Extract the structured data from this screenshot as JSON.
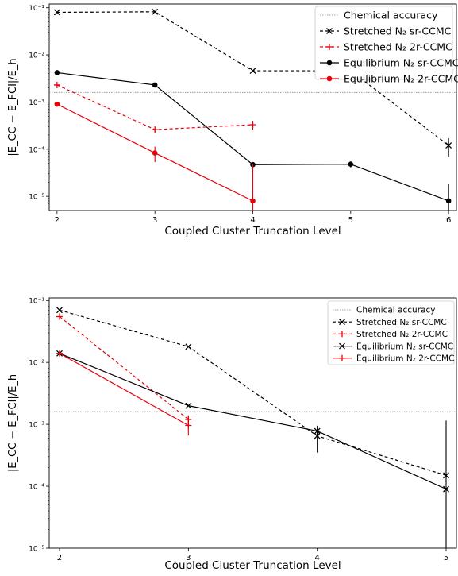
{
  "chart_data": [
    {
      "type": "line",
      "title": "",
      "xlabel": "Coupled Cluster Truncation Level",
      "ylabel": "|E_CC − E_FCI|/E_h",
      "xticks": [
        "2",
        "3",
        "4",
        "5",
        "6"
      ],
      "yticks": [
        "10⁻¹",
        "10⁻²",
        "10⁻³",
        "10⁻⁴",
        "10⁻⁵"
      ],
      "xlim": [
        1.92,
        6.08
      ],
      "ylim": [
        5e-06,
        0.12
      ],
      "yscale": "log",
      "legend_position": "top-right",
      "hline": {
        "name": "Chemical accuracy",
        "y": 0.0016,
        "color": "#888888"
      },
      "series": [
        {
          "name": "Stretched N₂ sr-CCMC",
          "color": "#000000",
          "dashed": true,
          "marker": "x",
          "x": [
            2,
            3,
            4,
            5,
            6
          ],
          "y": [
            0.08,
            0.082,
            0.0046,
            0.0046,
            0.00012
          ],
          "err": [
            0,
            0,
            0,
            0,
            5e-05
          ]
        },
        {
          "name": "Stretched N₂ 2r-CCMC",
          "color": "#e8000b",
          "dashed": true,
          "marker": "plus",
          "x": [
            2,
            3,
            4
          ],
          "y": [
            0.0023,
            0.00026,
            0.00033
          ],
          "err": [
            0,
            2e-05,
            7e-05
          ]
        },
        {
          "name": "Equilibrium N₂ sr-CCMC",
          "color": "#000000",
          "dashed": false,
          "marker": "dot",
          "x": [
            2,
            3,
            4,
            5,
            6
          ],
          "y": [
            0.0042,
            0.0023,
            4.7e-05,
            4.8e-05,
            8e-06
          ],
          "err": [
            0,
            0,
            0,
            7e-06,
            1e-05
          ]
        },
        {
          "name": "Equilibrium N₂ 2r-CCMC",
          "color": "#e8000b",
          "dashed": false,
          "marker": "dot",
          "x": [
            2,
            3,
            4
          ],
          "y": [
            0.0009,
            8.3e-05,
            8e-06
          ],
          "err": [
            0,
            3e-05,
            4e-05
          ]
        }
      ]
    },
    {
      "type": "line",
      "title": "",
      "xlabel": "Coupled Cluster Truncation Level",
      "ylabel": "|E_CC − E_FCI|/E_h",
      "xticks": [
        "2",
        "3",
        "4",
        "5"
      ],
      "yticks": [
        "10⁻¹",
        "10⁻²",
        "10⁻³",
        "10⁻⁴",
        "10⁻⁵"
      ],
      "xlim": [
        1.92,
        5.08
      ],
      "ylim": [
        1e-05,
        0.11
      ],
      "yscale": "log",
      "legend_position": "top-right",
      "hline": {
        "name": "Chemical accuracy",
        "y": 0.0016,
        "color": "#888888"
      },
      "series": [
        {
          "name": "Stretched N₂ sr-CCMC",
          "color": "#000000",
          "dashed": true,
          "marker": "x",
          "x": [
            2,
            3,
            4,
            5
          ],
          "y": [
            0.07,
            0.018,
            0.00065,
            0.00015
          ],
          "err": [
            0,
            0,
            0.0003,
            0
          ]
        },
        {
          "name": "Stretched N₂ 2r-CCMC",
          "color": "#e8000b",
          "dashed": true,
          "marker": "plus",
          "x": [
            2,
            3
          ],
          "y": [
            0.055,
            0.0012
          ],
          "err": [
            0,
            0.0002
          ]
        },
        {
          "name": "Equilibrium N₂ sr-CCMC",
          "color": "#000000",
          "dashed": false,
          "marker": "x",
          "x": [
            2,
            3,
            4,
            5
          ],
          "y": [
            0.014,
            0.002,
            0.00078,
            9e-05
          ],
          "err": [
            0,
            0,
            0.0001,
            0.00106
          ]
        },
        {
          "name": "Equilibrium N₂ 2r-CCMC",
          "color": "#e8000b",
          "dashed": false,
          "marker": "plus",
          "x": [
            2,
            3
          ],
          "y": [
            0.014,
            0.00096
          ],
          "err": [
            0,
            0.0003
          ]
        }
      ]
    }
  ]
}
